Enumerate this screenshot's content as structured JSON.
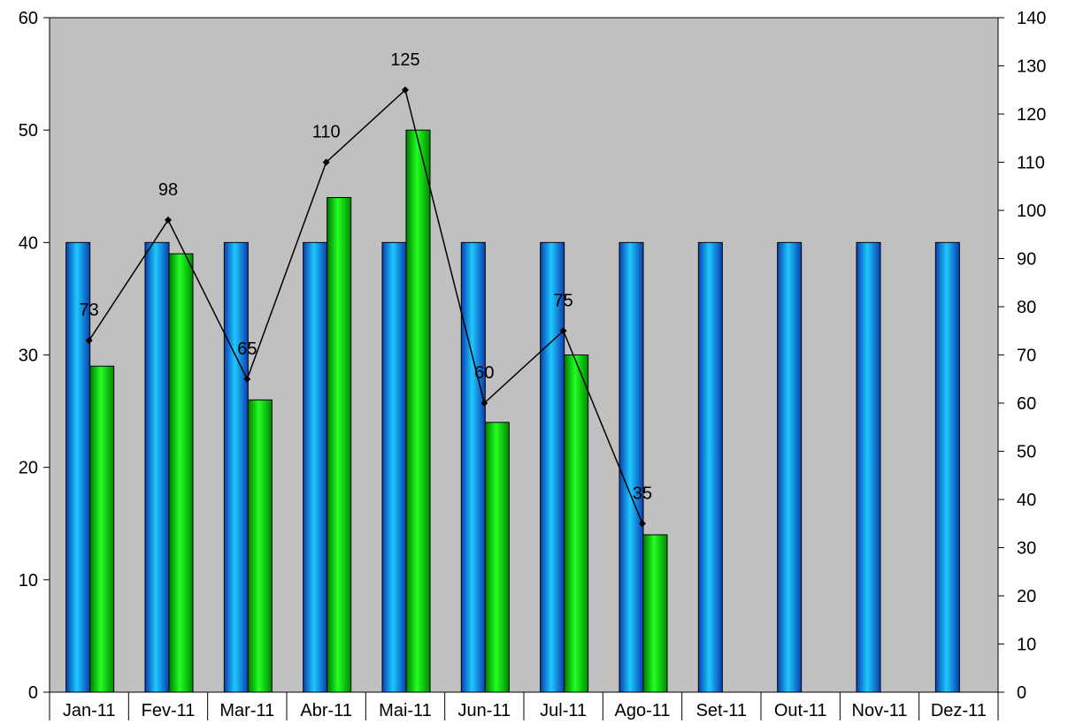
{
  "chart_data": {
    "type": "bar",
    "categories": [
      "Jan-11",
      "Fev-11",
      "Mar-11",
      "Abr-11",
      "Mai-11",
      "Jun-11",
      "Jul-11",
      "Ago-11",
      "Set-11",
      "Out-11",
      "Nov-11",
      "Dez-11"
    ],
    "series": [
      {
        "type": "bar",
        "axis": "left",
        "color": "#1E90FF",
        "values": [
          40,
          40,
          40,
          40,
          40,
          40,
          40,
          40,
          40,
          40,
          40,
          40
        ]
      },
      {
        "type": "bar",
        "axis": "left",
        "color": "#00DD00",
        "values": [
          29,
          39,
          26,
          44,
          50,
          24,
          30,
          14,
          null,
          null,
          null,
          null
        ]
      },
      {
        "type": "line",
        "axis": "right",
        "color": "#000000",
        "values": [
          73,
          98,
          65,
          110,
          125,
          60,
          75,
          35,
          null,
          null,
          null,
          null
        ],
        "data_labels": [
          "73",
          "98",
          "65",
          "110",
          "125",
          "60",
          "75",
          "35"
        ]
      }
    ],
    "y_left": {
      "lim": [
        0,
        60
      ],
      "ticks": [
        "0",
        "10",
        "20",
        "30",
        "40",
        "50",
        "60"
      ]
    },
    "y_right": {
      "lim": [
        0,
        140
      ],
      "ticks": [
        "0",
        "10",
        "20",
        "30",
        "40",
        "50",
        "60",
        "70",
        "80",
        "90",
        "100",
        "110",
        "120",
        "130",
        "140"
      ]
    },
    "plot_background": "#C0C0C0",
    "grid": false,
    "legend": "none",
    "title": "",
    "xlabel": "",
    "ylabel": ""
  }
}
